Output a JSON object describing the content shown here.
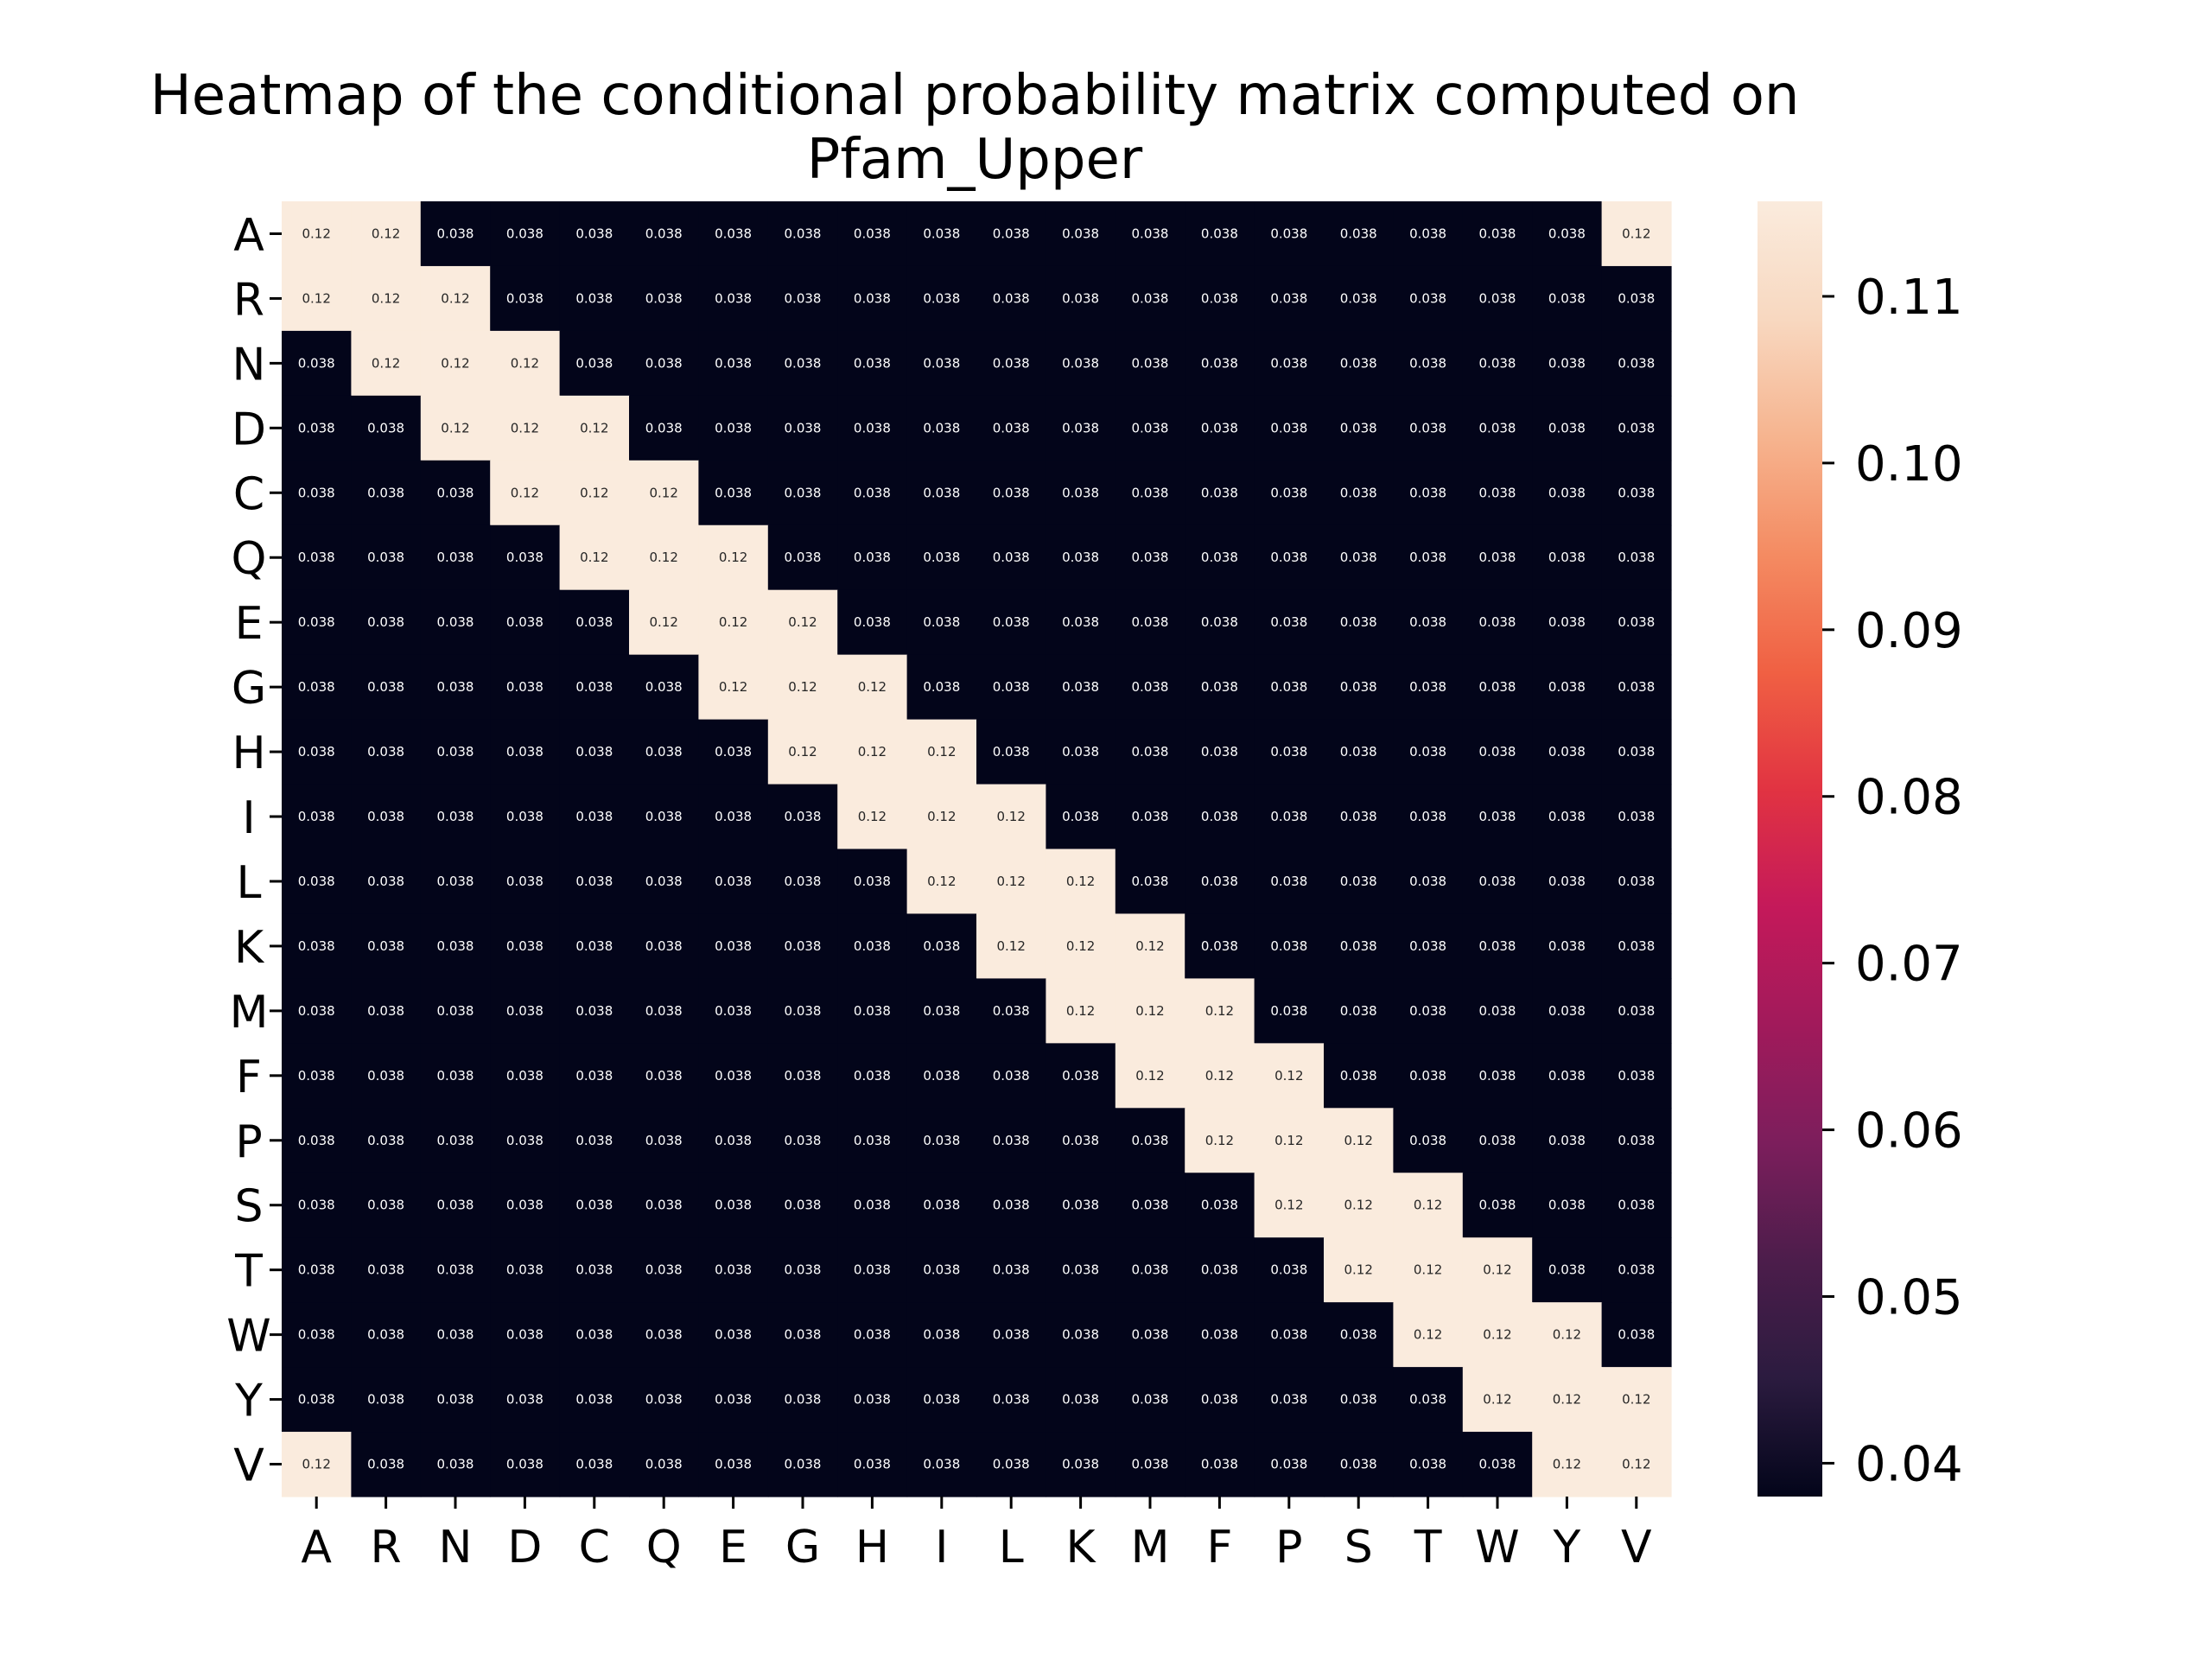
{
  "chart_data": {
    "type": "heatmap",
    "title_lines": [
      "Heatmap of the conditional probability matrix computed on",
      "Pfam_Upper"
    ],
    "xlabel": "",
    "ylabel": "",
    "x_labels": [
      "A",
      "R",
      "N",
      "D",
      "C",
      "Q",
      "E",
      "G",
      "H",
      "I",
      "L",
      "K",
      "M",
      "F",
      "P",
      "S",
      "T",
      "W",
      "Y",
      "V"
    ],
    "y_labels": [
      "A",
      "R",
      "N",
      "D",
      "C",
      "Q",
      "E",
      "G",
      "H",
      "I",
      "L",
      "K",
      "M",
      "F",
      "P",
      "S",
      "T",
      "W",
      "Y",
      "V"
    ],
    "values": [
      [
        0.12,
        0.12,
        0.038,
        0.038,
        0.038,
        0.038,
        0.038,
        0.038,
        0.038,
        0.038,
        0.038,
        0.038,
        0.038,
        0.038,
        0.038,
        0.038,
        0.038,
        0.038,
        0.038,
        0.12
      ],
      [
        0.12,
        0.12,
        0.12,
        0.038,
        0.038,
        0.038,
        0.038,
        0.038,
        0.038,
        0.038,
        0.038,
        0.038,
        0.038,
        0.038,
        0.038,
        0.038,
        0.038,
        0.038,
        0.038,
        0.038
      ],
      [
        0.038,
        0.12,
        0.12,
        0.12,
        0.038,
        0.038,
        0.038,
        0.038,
        0.038,
        0.038,
        0.038,
        0.038,
        0.038,
        0.038,
        0.038,
        0.038,
        0.038,
        0.038,
        0.038,
        0.038
      ],
      [
        0.038,
        0.038,
        0.12,
        0.12,
        0.12,
        0.038,
        0.038,
        0.038,
        0.038,
        0.038,
        0.038,
        0.038,
        0.038,
        0.038,
        0.038,
        0.038,
        0.038,
        0.038,
        0.038,
        0.038
      ],
      [
        0.038,
        0.038,
        0.038,
        0.12,
        0.12,
        0.12,
        0.038,
        0.038,
        0.038,
        0.038,
        0.038,
        0.038,
        0.038,
        0.038,
        0.038,
        0.038,
        0.038,
        0.038,
        0.038,
        0.038
      ],
      [
        0.038,
        0.038,
        0.038,
        0.038,
        0.12,
        0.12,
        0.12,
        0.038,
        0.038,
        0.038,
        0.038,
        0.038,
        0.038,
        0.038,
        0.038,
        0.038,
        0.038,
        0.038,
        0.038,
        0.038
      ],
      [
        0.038,
        0.038,
        0.038,
        0.038,
        0.038,
        0.12,
        0.12,
        0.12,
        0.038,
        0.038,
        0.038,
        0.038,
        0.038,
        0.038,
        0.038,
        0.038,
        0.038,
        0.038,
        0.038,
        0.038
      ],
      [
        0.038,
        0.038,
        0.038,
        0.038,
        0.038,
        0.038,
        0.12,
        0.12,
        0.12,
        0.038,
        0.038,
        0.038,
        0.038,
        0.038,
        0.038,
        0.038,
        0.038,
        0.038,
        0.038,
        0.038
      ],
      [
        0.038,
        0.038,
        0.038,
        0.038,
        0.038,
        0.038,
        0.038,
        0.12,
        0.12,
        0.12,
        0.038,
        0.038,
        0.038,
        0.038,
        0.038,
        0.038,
        0.038,
        0.038,
        0.038,
        0.038
      ],
      [
        0.038,
        0.038,
        0.038,
        0.038,
        0.038,
        0.038,
        0.038,
        0.038,
        0.12,
        0.12,
        0.12,
        0.038,
        0.038,
        0.038,
        0.038,
        0.038,
        0.038,
        0.038,
        0.038,
        0.038
      ],
      [
        0.038,
        0.038,
        0.038,
        0.038,
        0.038,
        0.038,
        0.038,
        0.038,
        0.038,
        0.12,
        0.12,
        0.12,
        0.038,
        0.038,
        0.038,
        0.038,
        0.038,
        0.038,
        0.038,
        0.038
      ],
      [
        0.038,
        0.038,
        0.038,
        0.038,
        0.038,
        0.038,
        0.038,
        0.038,
        0.038,
        0.038,
        0.12,
        0.12,
        0.12,
        0.038,
        0.038,
        0.038,
        0.038,
        0.038,
        0.038,
        0.038
      ],
      [
        0.038,
        0.038,
        0.038,
        0.038,
        0.038,
        0.038,
        0.038,
        0.038,
        0.038,
        0.038,
        0.038,
        0.12,
        0.12,
        0.12,
        0.038,
        0.038,
        0.038,
        0.038,
        0.038,
        0.038
      ],
      [
        0.038,
        0.038,
        0.038,
        0.038,
        0.038,
        0.038,
        0.038,
        0.038,
        0.038,
        0.038,
        0.038,
        0.038,
        0.12,
        0.12,
        0.12,
        0.038,
        0.038,
        0.038,
        0.038,
        0.038
      ],
      [
        0.038,
        0.038,
        0.038,
        0.038,
        0.038,
        0.038,
        0.038,
        0.038,
        0.038,
        0.038,
        0.038,
        0.038,
        0.038,
        0.12,
        0.12,
        0.12,
        0.038,
        0.038,
        0.038,
        0.038
      ],
      [
        0.038,
        0.038,
        0.038,
        0.038,
        0.038,
        0.038,
        0.038,
        0.038,
        0.038,
        0.038,
        0.038,
        0.038,
        0.038,
        0.038,
        0.12,
        0.12,
        0.12,
        0.038,
        0.038,
        0.038
      ],
      [
        0.038,
        0.038,
        0.038,
        0.038,
        0.038,
        0.038,
        0.038,
        0.038,
        0.038,
        0.038,
        0.038,
        0.038,
        0.038,
        0.038,
        0.038,
        0.12,
        0.12,
        0.12,
        0.038,
        0.038
      ],
      [
        0.038,
        0.038,
        0.038,
        0.038,
        0.038,
        0.038,
        0.038,
        0.038,
        0.038,
        0.038,
        0.038,
        0.038,
        0.038,
        0.038,
        0.038,
        0.038,
        0.12,
        0.12,
        0.12,
        0.038
      ],
      [
        0.038,
        0.038,
        0.038,
        0.038,
        0.038,
        0.038,
        0.038,
        0.038,
        0.038,
        0.038,
        0.038,
        0.038,
        0.038,
        0.038,
        0.038,
        0.038,
        0.038,
        0.12,
        0.12,
        0.12
      ],
      [
        0.12,
        0.038,
        0.038,
        0.038,
        0.038,
        0.038,
        0.038,
        0.038,
        0.038,
        0.038,
        0.038,
        0.038,
        0.038,
        0.038,
        0.038,
        0.038,
        0.038,
        0.038,
        0.12,
        0.12
      ]
    ],
    "colorbar": {
      "ticks": [
        0.04,
        0.05,
        0.06,
        0.07,
        0.08,
        0.09,
        0.1,
        0.11
      ],
      "tick_labels": [
        "0.04",
        "0.05",
        "0.06",
        "0.07",
        "0.08",
        "0.09",
        "0.10",
        "0.11"
      ],
      "range": [
        0.038,
        0.1157
      ]
    },
    "colormap": "rocket",
    "colormap_stops": [
      "#03051a",
      "#2b1b3f",
      "#4c1d4b",
      "#7c1e5c",
      "#a11a5b",
      "#c4195a",
      "#e13342",
      "#f06043",
      "#f48b62",
      "#f6b48f",
      "#f8d8c0",
      "#faebdd"
    ],
    "annotation_text_colors": {
      "dark_cell": "#ffffff",
      "light_cell": "#262626"
    },
    "grid": false
  }
}
